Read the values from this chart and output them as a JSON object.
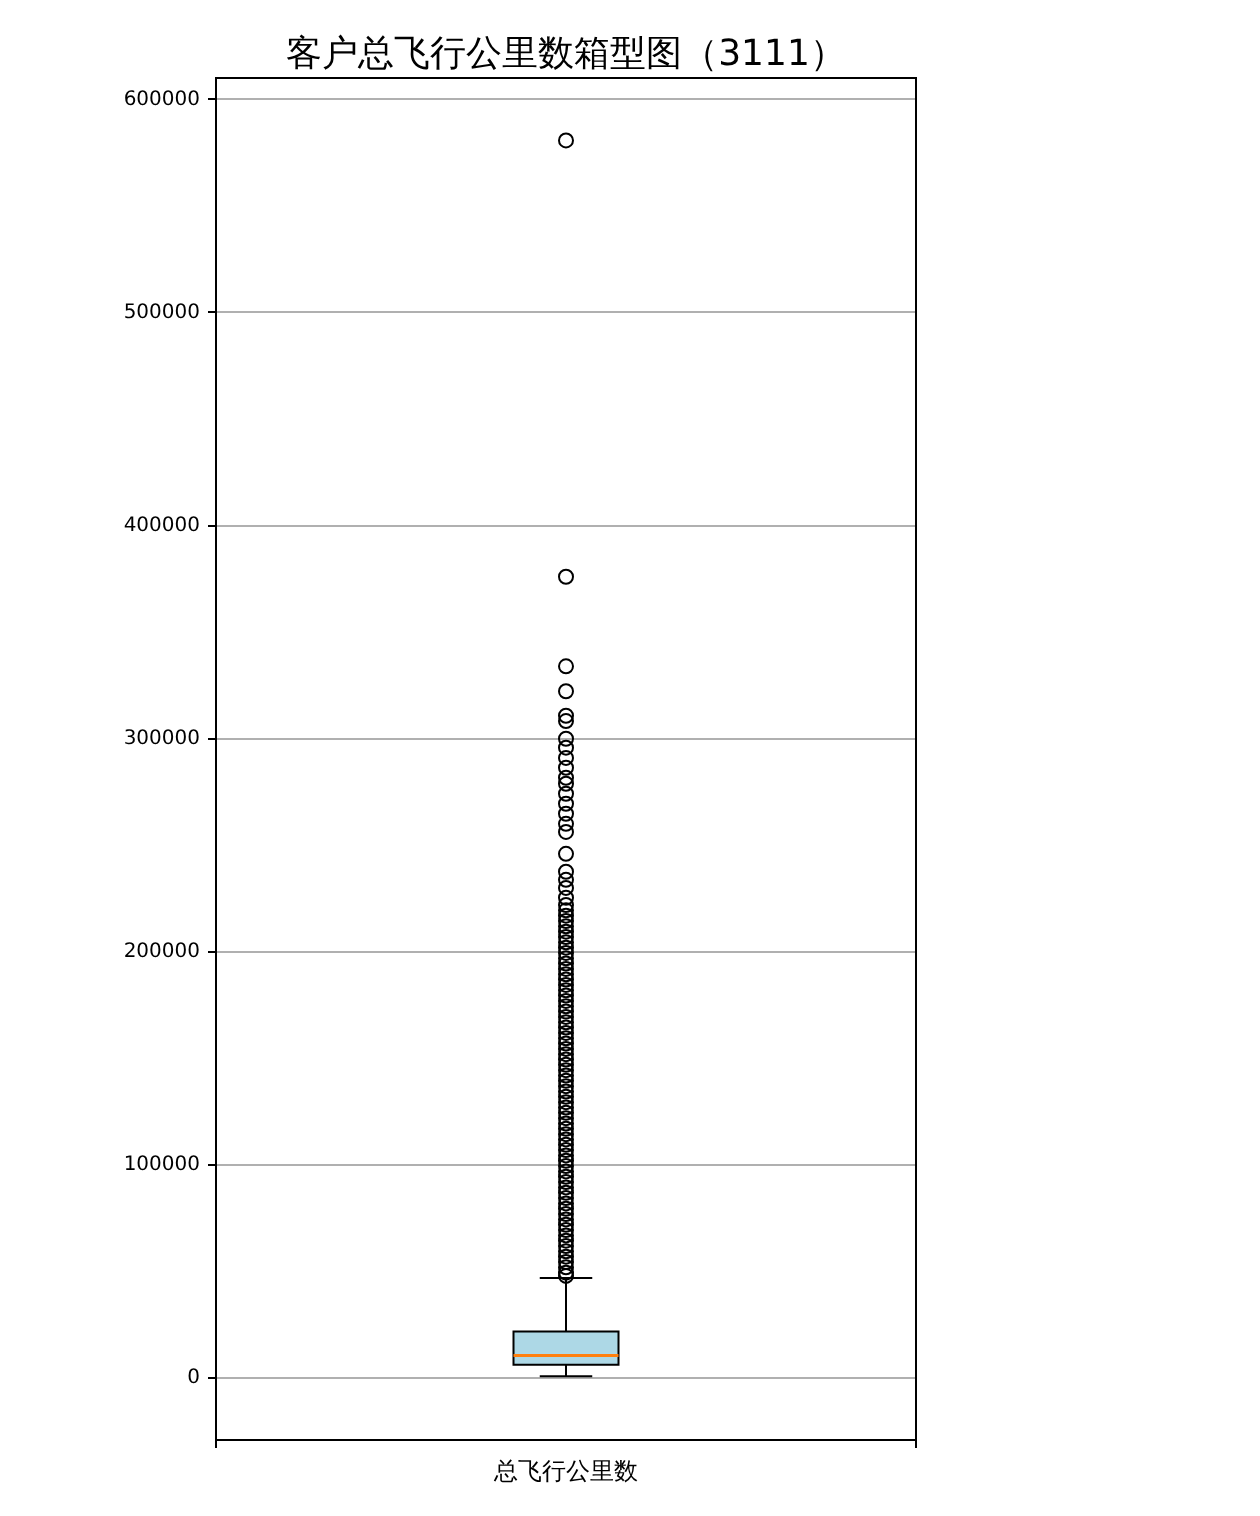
{
  "chart_data": {
    "type": "box",
    "title": "客户总飞行公里数箱型图（3111）",
    "categories": [
      "总飞行公里数"
    ],
    "color": "#add8e6",
    "boxes": [
      {
        "low": 900,
        "q1": 6300,
        "median": 10700,
        "q3": 21900,
        "high": 47000,
        "outliers": [
          580700,
          376000,
          334000,
          322300,
          310800,
          308300,
          300000,
          295800,
          291000,
          286400,
          281700,
          278900,
          274200,
          269500,
          264800,
          260100,
          256300,
          246000,
          237600,
          233800,
          230000,
          225400,
          222000,
          219500,
          217000,
          214500,
          212000,
          209500,
          207000,
          204500,
          202000,
          199500,
          197000,
          194500,
          192000,
          189500,
          187000,
          184500,
          182000,
          179500,
          177000,
          174500,
          172000,
          169500,
          167000,
          164500,
          162000,
          159500,
          157000,
          154500,
          152000,
          149500,
          147000,
          144500,
          142000,
          139500,
          137000,
          134500,
          132000,
          129500,
          127000,
          124500,
          122000,
          119500,
          117000,
          114500,
          112000,
          109500,
          107000,
          104500,
          102000,
          99500,
          97000,
          94500,
          92000,
          89500,
          87000,
          84500,
          82000,
          79500,
          77000,
          74500,
          72000,
          69500,
          67000,
          64500,
          62000,
          59500,
          57000,
          54500,
          52000,
          49500,
          48000
        ]
      }
    ],
    "ylim": [
      -29000,
      610000
    ],
    "yticks": [
      0,
      100000,
      200000,
      300000,
      400000,
      500000,
      600000
    ],
    "grid": "y",
    "marker": "circle"
  }
}
